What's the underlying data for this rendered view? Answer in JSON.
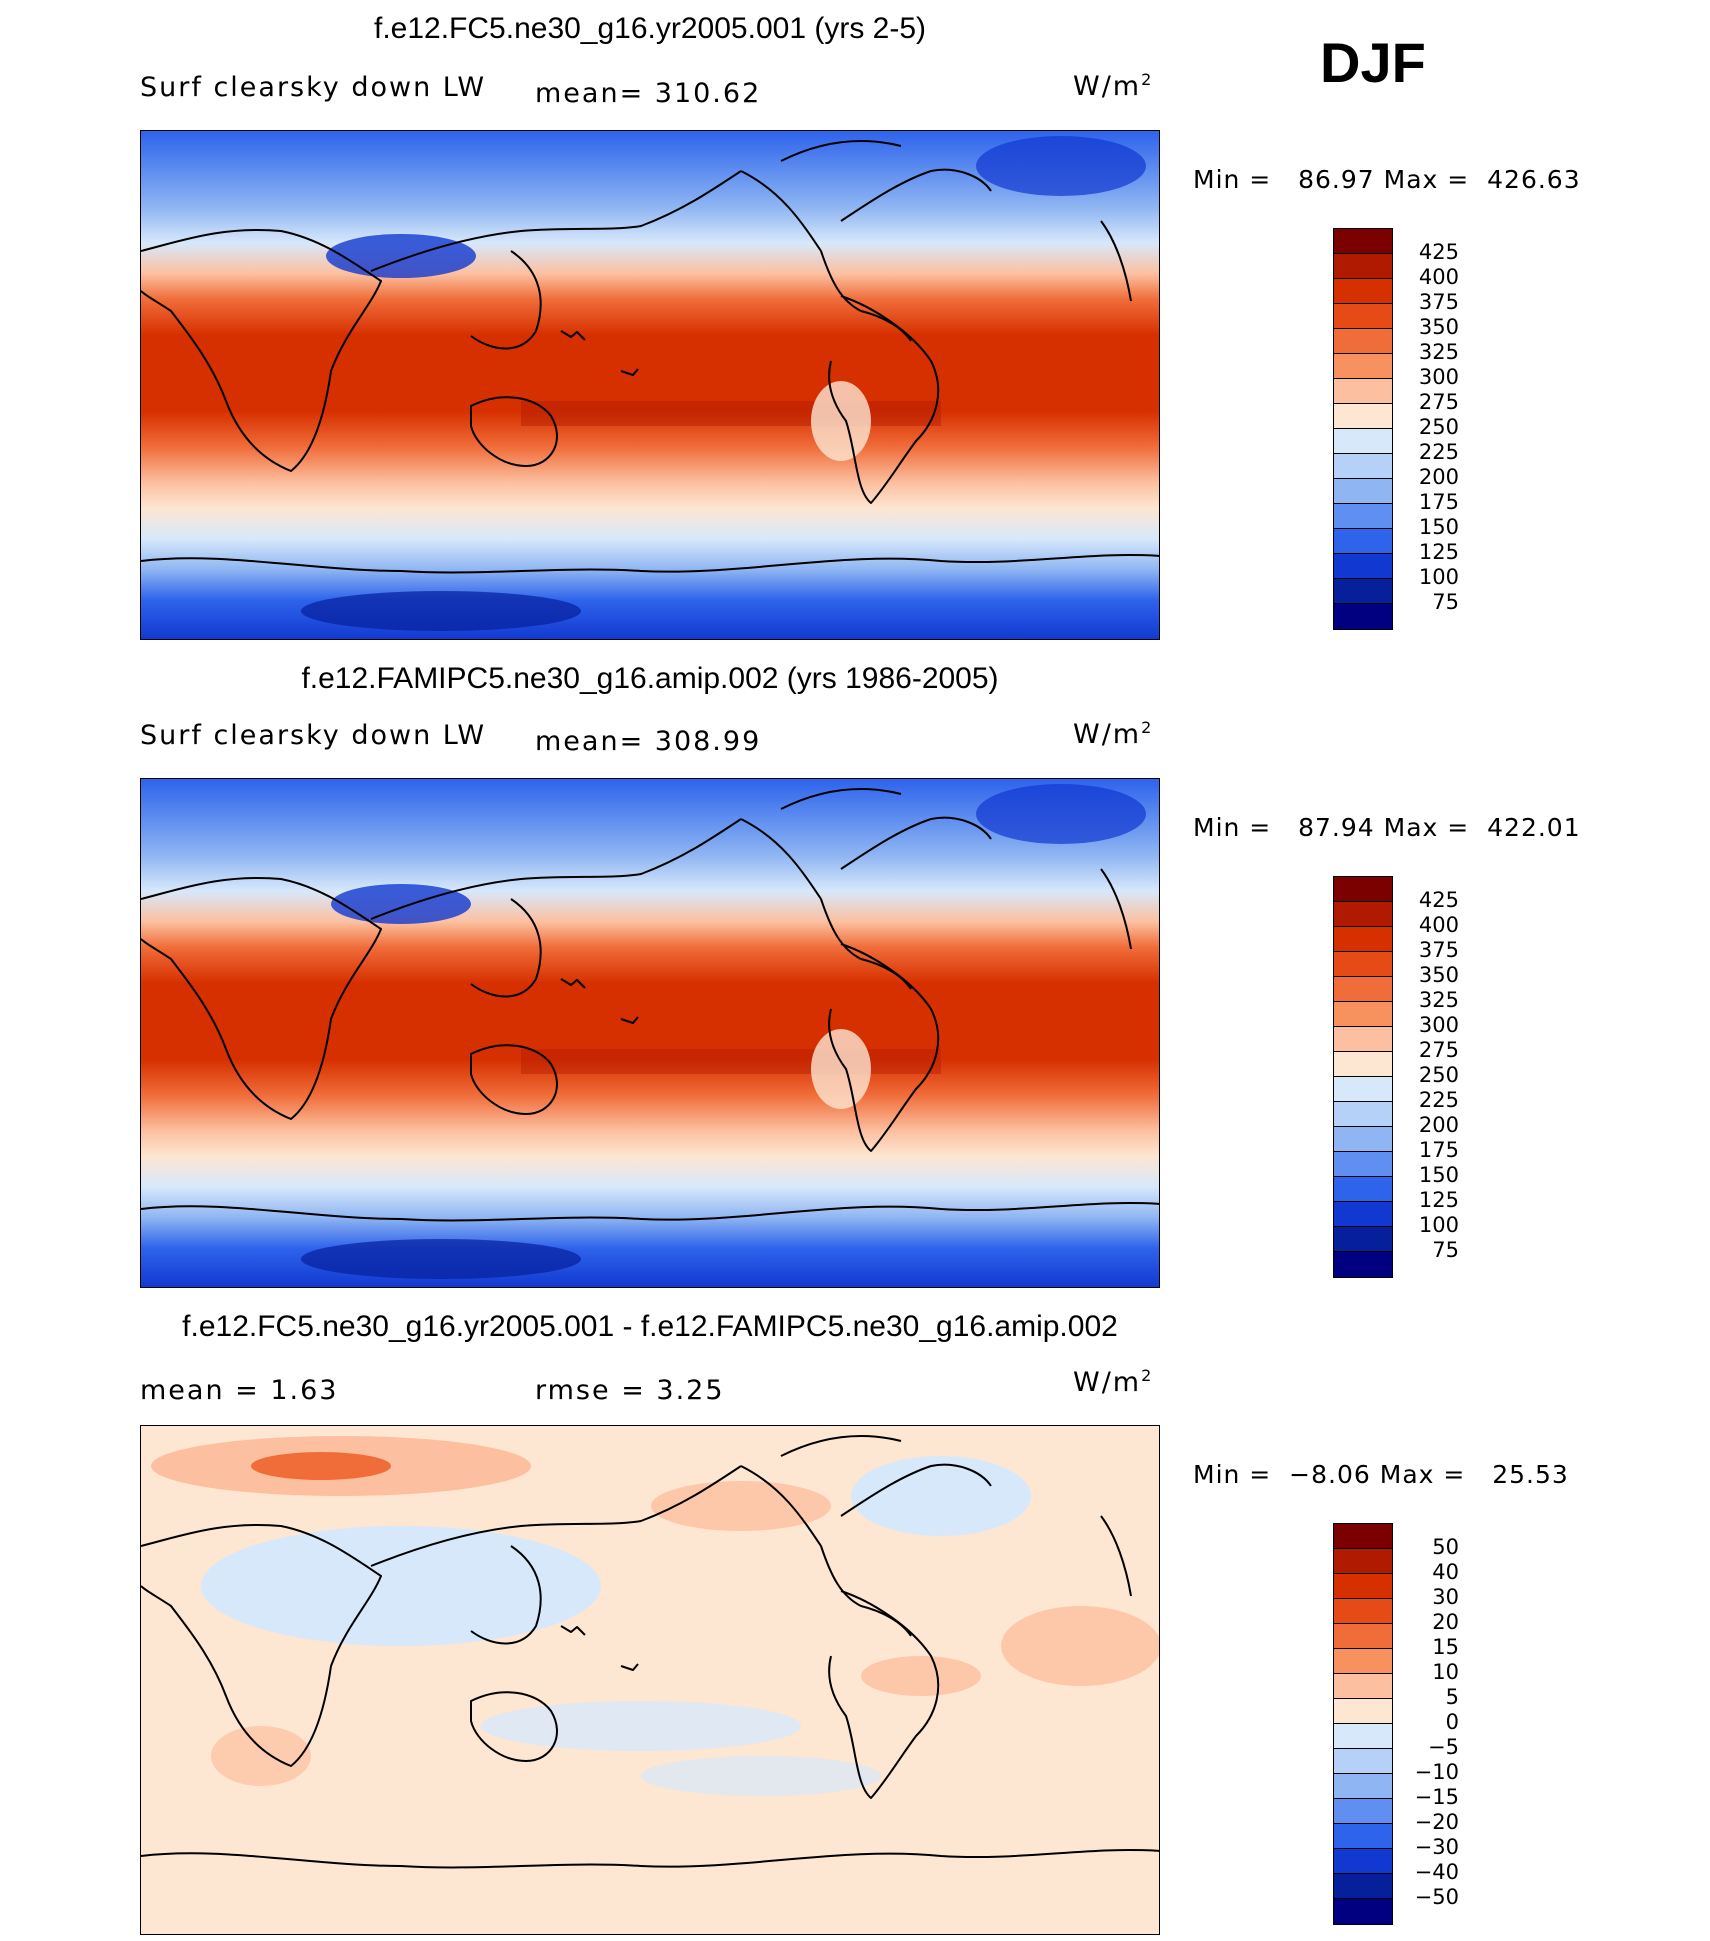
{
  "season": "DJF",
  "panels": [
    {
      "title": "f.e12.FC5.ne30_g16.yr2005.001 (yrs 2-5)",
      "variable": "Surf clearsky down LW",
      "stat_left": "",
      "stat_right": "mean= 310.62",
      "units": "W/m",
      "units_exp": "2",
      "min_label": "Min =",
      "min": "86.97",
      "max_label": "Max =",
      "max": "426.63",
      "colorbar_labels": [
        "425",
        "400",
        "375",
        "350",
        "325",
        "300",
        "275",
        "250",
        "225",
        "200",
        "175",
        "150",
        "125",
        "100",
        "75"
      ]
    },
    {
      "title": "f.e12.FAMIPC5.ne30_g16.amip.002 (yrs 1986-2005)",
      "variable": "Surf clearsky down LW",
      "stat_left": "",
      "stat_right": "mean= 308.99",
      "units": "W/m",
      "units_exp": "2",
      "min_label": "Min =",
      "min": "87.94",
      "max_label": "Max =",
      "max": "422.01",
      "colorbar_labels": [
        "425",
        "400",
        "375",
        "350",
        "325",
        "300",
        "275",
        "250",
        "225",
        "200",
        "175",
        "150",
        "125",
        "100",
        "75"
      ]
    },
    {
      "title": "f.e12.FC5.ne30_g16.yr2005.001 - f.e12.FAMIPC5.ne30_g16.amip.002",
      "variable": "",
      "stat_left": "mean =    1.63",
      "stat_right": "rmse =    3.25",
      "units": "W/m",
      "units_exp": "2",
      "min_label": "Min =",
      "min": "−8.06",
      "max_label": "Max =",
      "max": "25.53",
      "colorbar_labels": [
        "50",
        "40",
        "30",
        "20",
        "15",
        "10",
        "5",
        "0",
        "−5",
        "−10",
        "−15",
        "−20",
        "−30",
        "−40",
        "−50"
      ]
    }
  ],
  "colors": {
    "abs_scale": [
      "#7b0000",
      "#b01a00",
      "#d73000",
      "#e64b17",
      "#f06d3a",
      "#f7925f",
      "#fcc0a0",
      "#fde6d2",
      "#d7e8fb",
      "#b5d1f7",
      "#8fb5f2",
      "#5f8ff0",
      "#2e63ec",
      "#1138d0",
      "#06209c",
      "#000080"
    ],
    "diff_scale": [
      "#7b0000",
      "#b01a00",
      "#d73000",
      "#e64b17",
      "#f06d3a",
      "#f7925f",
      "#fcc0a0",
      "#fde6d2",
      "#d7e8fb",
      "#b5d1f7",
      "#8fb5f2",
      "#5f8ff0",
      "#2e63ec",
      "#1138d0",
      "#06209c",
      "#000080"
    ]
  }
}
